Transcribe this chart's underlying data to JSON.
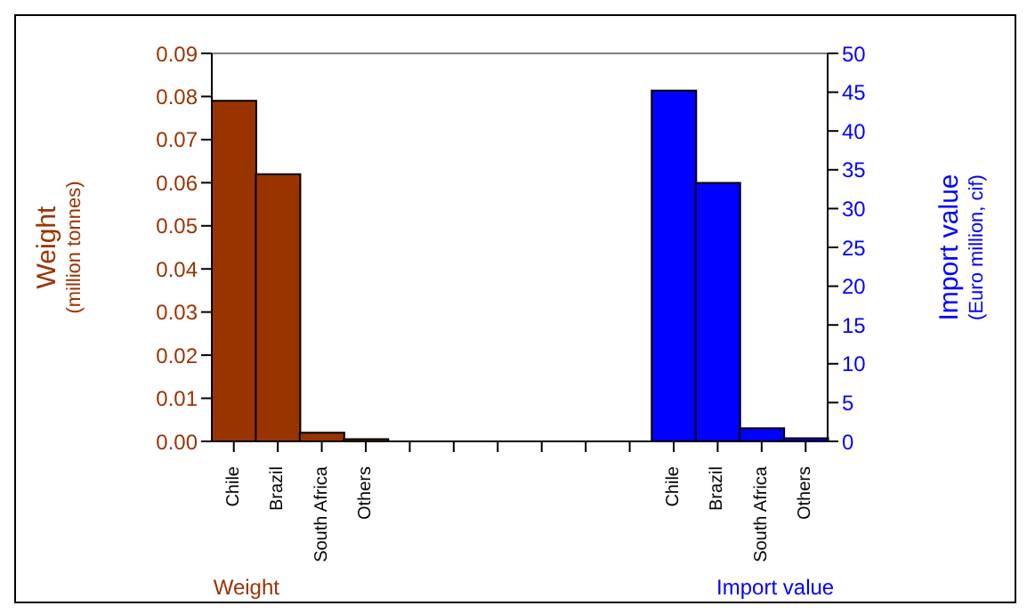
{
  "chart_data": {
    "type": "bar",
    "ylabel": "Weight\n(million tonnes)",
    "y2label": "Import value\n(Euro million, cif)",
    "categories": [
      "Chile",
      "Brazil",
      "South Africa",
      "Others",
      null,
      null,
      null,
      null,
      null,
      null,
      "Chile",
      "Brazil",
      "South Africa",
      "Others"
    ],
    "series": [
      {
        "name": "Weight",
        "color": "#993300",
        "values": [
          0.079,
          0.062,
          0.002,
          0.0005,
          null,
          null,
          null,
          null,
          null,
          null,
          null,
          null,
          null,
          null
        ]
      },
      {
        "name": "Import value",
        "color": "#0000ff",
        "axis": "y2",
        "values": [
          null,
          null,
          null,
          null,
          null,
          null,
          null,
          null,
          null,
          null,
          45.2,
          33.3,
          1.7,
          0.4
        ]
      }
    ],
    "ylim": [
      0,
      0.09
    ],
    "yticks": [
      {
        "value": 0,
        "label": "0.00"
      },
      {
        "value": 0.01,
        "label": "0.01"
      },
      {
        "value": 0.02,
        "label": "0.02"
      },
      {
        "value": 0.03,
        "label": "0.03"
      },
      {
        "value": 0.04,
        "label": "0.04"
      },
      {
        "value": 0.05,
        "label": "0.05"
      },
      {
        "value": 0.06,
        "label": "0.06"
      },
      {
        "value": 0.07,
        "label": "0.07"
      },
      {
        "value": 0.08,
        "label": "0.08"
      },
      {
        "value": 0.09,
        "label": "0.09"
      }
    ],
    "y2lim": [
      0,
      50
    ],
    "y2ticks": [
      0,
      5,
      10,
      15,
      20,
      25,
      30,
      35,
      40,
      45,
      50
    ],
    "grid": false,
    "legend": false
  }
}
